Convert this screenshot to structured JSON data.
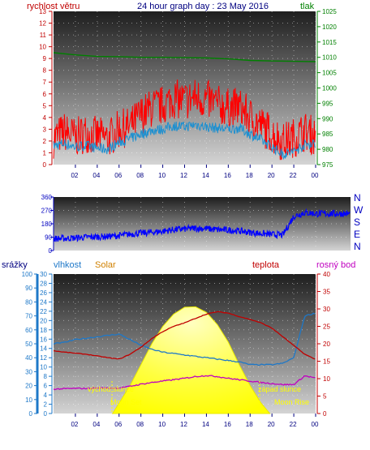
{
  "header": {
    "left_label": "rychlost větru",
    "title": "24 hour graph day : 23 May 2016",
    "right_label": "tlak"
  },
  "wind_dir_letters": [
    "N",
    "W",
    "S",
    "E",
    "N"
  ],
  "bottom_labels": {
    "srazky": "srážky",
    "vlhkost": "vlhkost",
    "solar": "Solar",
    "teplota": "teplota",
    "rosny_bod": "rosný bod"
  },
  "annotations": {
    "sunrise": "východ slunce",
    "sunset": "západ slunce",
    "moonset": "Moon Set",
    "moonrise": "Moon Rise"
  },
  "colors": {
    "wind_gust": "#ff0000",
    "wind_avg": "#1e90d0",
    "pressure": "#008000",
    "wind_dir": "#0000ff",
    "humidity": "#1e78c8",
    "solar": "#ffff00",
    "temperature": "#c00000",
    "dewpoint": "#c000c0",
    "annotation": "#ffff00"
  },
  "chart_data": [
    {
      "type": "line",
      "name": "wind-pressure",
      "x_ticks": [
        "02",
        "04",
        "06",
        "08",
        "10",
        "12",
        "14",
        "16",
        "18",
        "20",
        "22",
        "00"
      ],
      "left_axis": {
        "label": "rychlost větru",
        "ylim": [
          0,
          13
        ],
        "ticks": [
          0,
          1,
          2,
          3,
          4,
          5,
          6,
          7,
          8,
          9,
          10,
          11,
          12,
          13
        ]
      },
      "right_axis": {
        "label": "tlak",
        "ylim": [
          975,
          1025
        ],
        "ticks": [
          975,
          980,
          985,
          990,
          995,
          1000,
          1005,
          1010,
          1015,
          1020,
          1025
        ]
      },
      "series": [
        {
          "name": "wind gust",
          "axis": "left",
          "x": [
            0,
            1,
            2,
            3,
            4,
            5,
            6,
            7,
            8,
            9,
            10,
            11,
            12,
            13,
            14,
            15,
            16,
            17,
            18,
            19,
            20,
            21,
            22,
            23,
            24
          ],
          "values": [
            2.2,
            2.8,
            2.3,
            2.7,
            2.4,
            2.2,
            3.0,
            3.2,
            4.2,
            4.8,
            5.0,
            5.6,
            5.4,
            5.7,
            5.5,
            5.1,
            4.8,
            4.9,
            4.0,
            3.3,
            2.6,
            1.9,
            2.3,
            2.8,
            2.4
          ]
        },
        {
          "name": "wind average",
          "axis": "left",
          "x": [
            0,
            1,
            2,
            3,
            4,
            5,
            6,
            7,
            8,
            9,
            10,
            11,
            12,
            13,
            14,
            15,
            16,
            17,
            18,
            19,
            20,
            21,
            22,
            23,
            24
          ],
          "values": [
            1.6,
            1.8,
            1.5,
            1.6,
            1.4,
            1.3,
            1.9,
            2.2,
            2.6,
            2.9,
            3.0,
            3.3,
            3.2,
            3.4,
            3.2,
            3.1,
            3.0,
            3.1,
            2.6,
            2.1,
            1.5,
            0.9,
            1.1,
            1.7,
            1.8
          ]
        },
        {
          "name": "pressure",
          "axis": "right",
          "x": [
            0,
            2,
            4,
            6,
            8,
            10,
            12,
            14,
            16,
            18,
            20,
            22,
            24
          ],
          "values": [
            1011.5,
            1010.8,
            1010.3,
            1010.2,
            1010.0,
            1010.0,
            1009.9,
            1009.8,
            1009.5,
            1009.0,
            1008.8,
            1008.7,
            1008.6
          ]
        }
      ]
    },
    {
      "type": "line",
      "name": "wind-direction",
      "x_ticks": [
        "02",
        "04",
        "06",
        "08",
        "10",
        "12",
        "14",
        "16",
        "18",
        "20",
        "22",
        "00"
      ],
      "left_axis": {
        "ylim": [
          0,
          360
        ],
        "ticks": [
          0,
          90,
          180,
          270,
          360
        ]
      },
      "right_axis": {
        "labels": [
          "N",
          "W",
          "S",
          "E",
          "N"
        ]
      },
      "series": [
        {
          "name": "wind direction",
          "x": [
            0,
            1,
            2,
            3,
            4,
            5,
            6,
            7,
            8,
            9,
            10,
            11,
            12,
            13,
            14,
            15,
            16,
            17,
            18,
            19,
            20,
            21,
            22,
            23,
            24
          ],
          "values": [
            80,
            82,
            85,
            90,
            92,
            95,
            100,
            110,
            118,
            122,
            130,
            140,
            145,
            150,
            148,
            140,
            138,
            132,
            122,
            115,
            108,
            105,
            230,
            255,
            248
          ]
        }
      ]
    },
    {
      "type": "line",
      "name": "humidity-temperature",
      "x_ticks": [
        "02",
        "04",
        "06",
        "08",
        "10",
        "12",
        "14",
        "16",
        "18",
        "20",
        "22",
        "00"
      ],
      "left_axis_outer": {
        "label": "srážky",
        "ylim": [
          0,
          100
        ],
        "ticks": [
          0,
          10,
          20,
          30,
          40,
          50,
          60,
          70,
          80,
          90,
          100
        ]
      },
      "left_axis_inner": {
        "label": "vlhkost",
        "ylim": [
          0,
          30
        ],
        "ticks": [
          0,
          2,
          4,
          6,
          8,
          10,
          12,
          14,
          16,
          18,
          20,
          22,
          24,
          26,
          28,
          30
        ]
      },
      "right_axis": {
        "label": "teplota",
        "ylim": [
          0,
          40
        ],
        "ticks": [
          0,
          5,
          10,
          15,
          20,
          25,
          30,
          35,
          40
        ]
      },
      "series": [
        {
          "name": "vlhkost",
          "axis": "left_outer",
          "x": [
            0,
            1,
            2,
            3,
            4,
            5,
            6,
            7,
            8,
            9,
            10,
            11,
            12,
            13,
            14,
            15,
            16,
            17,
            18,
            19,
            20,
            21,
            22,
            23,
            24
          ],
          "values": [
            50,
            51,
            53,
            54,
            55,
            56,
            57,
            53,
            49,
            46,
            44,
            43,
            42,
            41,
            40,
            39,
            38,
            37,
            35,
            35,
            35,
            36,
            40,
            70,
            72
          ]
        },
        {
          "name": "teplota",
          "axis": "right",
          "x": [
            0,
            1,
            2,
            3,
            4,
            5,
            6,
            7,
            8,
            9,
            10,
            11,
            12,
            13,
            14,
            15,
            16,
            17,
            18,
            19,
            20,
            21,
            22,
            23,
            24
          ],
          "values": [
            18,
            17.6,
            17.3,
            17,
            16.5,
            16,
            15.6,
            17,
            19,
            21.5,
            23.5,
            25,
            26,
            27.3,
            28.5,
            29.2,
            28.8,
            27.8,
            27,
            26,
            24.5,
            22,
            19.5,
            17,
            15.5
          ]
        },
        {
          "name": "rosný bod",
          "axis": "right",
          "x": [
            0,
            1,
            2,
            3,
            4,
            5,
            6,
            7,
            8,
            9,
            10,
            11,
            12,
            13,
            14,
            15,
            16,
            17,
            18,
            19,
            20,
            21,
            22,
            23,
            24
          ],
          "values": [
            7,
            7.1,
            7.2,
            7.2,
            7.3,
            7.3,
            7.3,
            7.8,
            8.4,
            8.9,
            9.3,
            9.7,
            10.1,
            10.6,
            10.9,
            10.6,
            10.1,
            9.7,
            9.3,
            8.9,
            8.6,
            8.3,
            8.3,
            10.8,
            10.2
          ]
        },
        {
          "name": "Solar",
          "axis": "right",
          "x": [
            5.4,
            6,
            7,
            8,
            9,
            10,
            11,
            12,
            13,
            14,
            15,
            16,
            17,
            18,
            19,
            19.8
          ],
          "values": [
            0,
            3,
            8,
            14,
            20,
            25,
            28.5,
            30.5,
            30.6,
            29,
            25.5,
            20.5,
            14,
            8,
            3,
            0
          ]
        }
      ]
    }
  ]
}
